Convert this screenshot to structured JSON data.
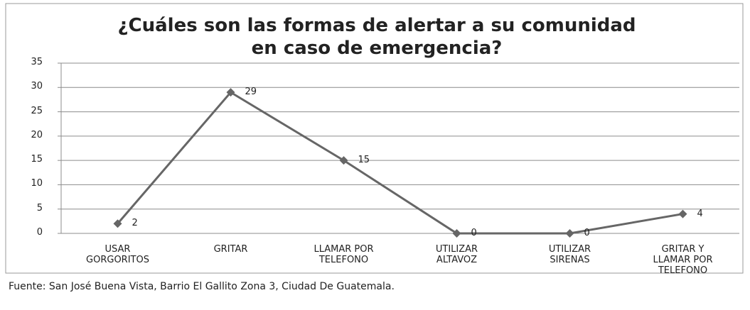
{
  "chart_data": {
    "type": "line",
    "title": "¿Cuáles son las formas de alertar a su comunidad en caso de emergencia?",
    "categories": [
      "USAR GORGORITOS",
      "GRITAR",
      "LLAMAR POR TELEFONO",
      "UTILIZAR ALTAVOZ",
      "UTILIZAR SIRENAS",
      "GRITAR Y LLAMAR POR TELEFONO"
    ],
    "values": [
      2,
      29,
      15,
      0,
      0,
      4
    ],
    "color": "#666666",
    "ylim": [
      0,
      35
    ],
    "yticks": [
      0,
      5,
      10,
      15,
      20,
      25,
      30,
      35
    ],
    "grid": true,
    "source": "Fuente: San José Buena Vista, Barrio El Gallito Zona 3, Ciudad De Guatemala."
  }
}
